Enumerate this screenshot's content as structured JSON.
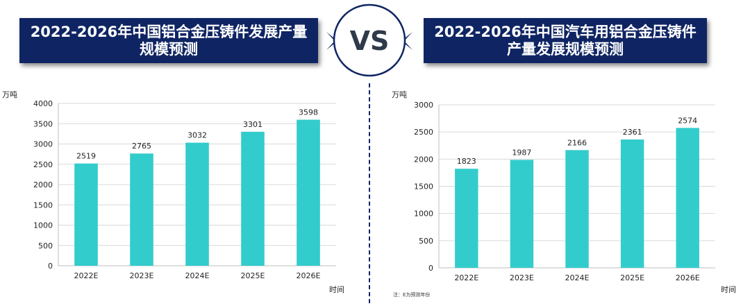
{
  "colors": {
    "banner_bg": "#0f2563",
    "bar": "#33cccc",
    "vs_text": "#2f3a4a",
    "circle_stroke": "#0f2563",
    "divider": "#0f2563"
  },
  "banners": {
    "left": "2022-2026年中国铝合金压铸件发展产量\n规模预测",
    "right": "2022-2026年中国汽车用铝合金压铸件\n产量发展规模预测"
  },
  "vs_label": "VS",
  "note": "注：E为预测年份",
  "chart_data": [
    {
      "type": "bar",
      "categories": [
        "2022E",
        "2023E",
        "2024E",
        "2025E",
        "2026E"
      ],
      "values": [
        2519,
        2765,
        3032,
        3301,
        3598
      ],
      "ylabel": "万吨",
      "xlabel": "时间",
      "ylim": [
        0,
        4000
      ],
      "yticks": [
        0,
        500,
        1000,
        1500,
        2000,
        2500,
        3000,
        3500,
        4000
      ],
      "grid": true
    },
    {
      "type": "bar",
      "categories": [
        "2022E",
        "2023E",
        "2024E",
        "2025E",
        "2026E"
      ],
      "values": [
        1823,
        1987,
        2166,
        2361,
        2574
      ],
      "ylabel": "万吨",
      "xlabel": "时间",
      "ylim": [
        0,
        3000
      ],
      "yticks": [
        0,
        500,
        1000,
        1500,
        2000,
        2500,
        3000
      ],
      "grid": true
    }
  ]
}
